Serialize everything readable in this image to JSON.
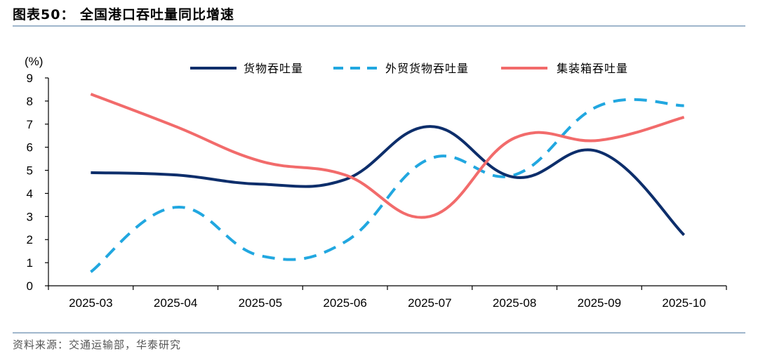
{
  "title": "图表50：   全国港口吞吐量同比增速",
  "source": "资料来源：交通运输部，华泰研究",
  "chart_data": {
    "type": "line",
    "ylabel": "(%)",
    "ylim": [
      0,
      9
    ],
    "yticks": [
      0,
      1,
      2,
      3,
      4,
      5,
      6,
      7,
      8,
      9
    ],
    "categories": [
      "2025-03",
      "2025-04",
      "2025-05",
      "2025-06",
      "2025-07",
      "2025-08",
      "2025-09",
      "2025-10"
    ],
    "legend_position": "top",
    "grid": false,
    "series": [
      {
        "name": "货物吞吐量",
        "values": [
          4.9,
          4.8,
          4.4,
          4.6,
          6.9,
          4.7,
          5.8,
          2.2
        ],
        "color": "#0d2e6b",
        "dash": "solid"
      },
      {
        "name": "外贸货物吞吐量",
        "values": [
          0.6,
          3.4,
          1.3,
          1.9,
          5.5,
          4.8,
          7.8,
          7.8
        ],
        "color": "#21a7e0",
        "dash": "dashed"
      },
      {
        "name": "集装箱吞吐量",
        "values": [
          8.3,
          6.9,
          5.4,
          4.8,
          3.0,
          6.4,
          6.3,
          7.3
        ],
        "color": "#f26b6b",
        "dash": "solid"
      }
    ]
  }
}
